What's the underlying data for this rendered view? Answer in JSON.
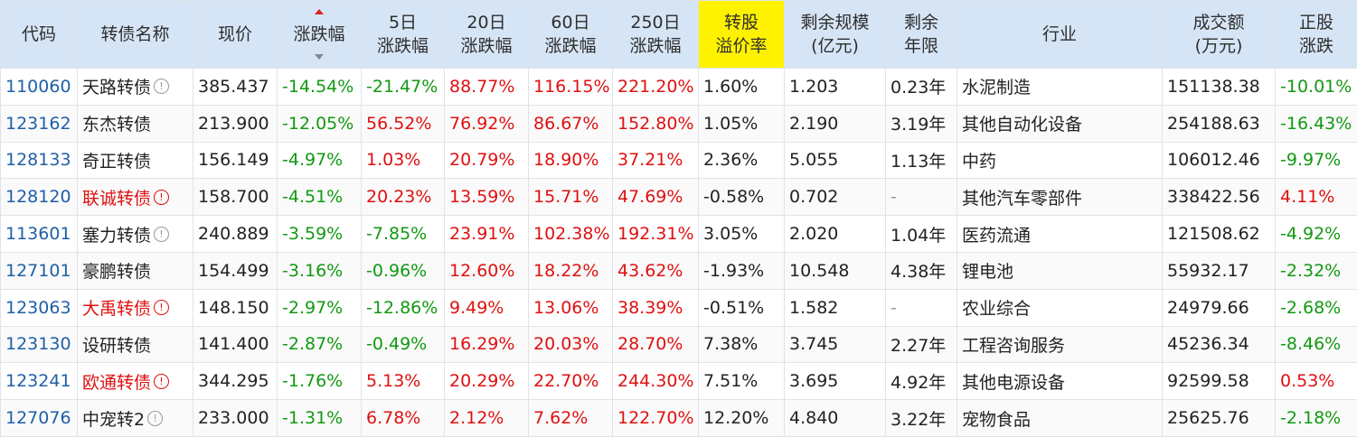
{
  "headers": [
    {
      "l1": "代码",
      "l2": ""
    },
    {
      "l1": "转债名称",
      "l2": ""
    },
    {
      "l1": "现价",
      "l2": ""
    },
    {
      "l1": "涨跌幅",
      "l2": ""
    },
    {
      "l1": "5日",
      "l2": "涨跌幅"
    },
    {
      "l1": "20日",
      "l2": "涨跌幅"
    },
    {
      "l1": "60日",
      "l2": "涨跌幅"
    },
    {
      "l1": "250日",
      "l2": "涨跌幅"
    },
    {
      "l1": "转股",
      "l2": "溢价率"
    },
    {
      "l1": "剩余规模",
      "l2": "(亿元)"
    },
    {
      "l1": "剩余",
      "l2": "年限"
    },
    {
      "l1": "行业",
      "l2": ""
    },
    {
      "l1": "成交额",
      "l2": "(万元)"
    },
    {
      "l1": "正股",
      "l2": "涨跌"
    }
  ],
  "sort": {
    "column": "涨跌幅"
  },
  "rows": [
    {
      "code": "110060",
      "name": "天路转债",
      "info": "normal",
      "price": "385.437",
      "chg": "-14.54%",
      "chg5": "-21.47%",
      "chg20": "88.77%",
      "chg60": "116.15%",
      "chg250": "221.20%",
      "premium": "1.60%",
      "scale": "1.203",
      "years": "0.23年",
      "industry": "水泥制造",
      "amount": "151138.38",
      "stock_chg": "-10.01%"
    },
    {
      "code": "123162",
      "name": "东杰转债",
      "info": "none",
      "price": "213.900",
      "chg": "-12.05%",
      "chg5": "56.52%",
      "chg20": "76.92%",
      "chg60": "86.67%",
      "chg250": "152.80%",
      "premium": "1.05%",
      "scale": "2.190",
      "years": "3.19年",
      "industry": "其他自动化设备",
      "amount": "254188.63",
      "stock_chg": "-16.43%"
    },
    {
      "code": "128133",
      "name": "奇正转债",
      "info": "none",
      "price": "156.149",
      "chg": "-4.97%",
      "chg5": "1.03%",
      "chg20": "20.79%",
      "chg60": "18.90%",
      "chg250": "37.21%",
      "premium": "2.36%",
      "scale": "5.055",
      "years": "1.13年",
      "industry": "中药",
      "amount": "106012.46",
      "stock_chg": "-9.97%"
    },
    {
      "code": "128120",
      "name": "联诚转债",
      "info": "warn",
      "price": "158.700",
      "chg": "-4.51%",
      "chg5": "20.23%",
      "chg20": "13.59%",
      "chg60": "15.71%",
      "chg250": "47.69%",
      "premium": "-0.58%",
      "scale": "0.702",
      "years": "-",
      "industry": "其他汽车零部件",
      "amount": "338422.56",
      "stock_chg": "4.11%"
    },
    {
      "code": "113601",
      "name": "塞力转债",
      "info": "normal",
      "price": "240.889",
      "chg": "-3.59%",
      "chg5": "-7.85%",
      "chg20": "23.91%",
      "chg60": "102.38%",
      "chg250": "192.31%",
      "premium": "3.05%",
      "scale": "2.020",
      "years": "1.04年",
      "industry": "医药流通",
      "amount": "121508.62",
      "stock_chg": "-4.92%"
    },
    {
      "code": "127101",
      "name": "豪鹏转债",
      "info": "none",
      "price": "154.499",
      "chg": "-3.16%",
      "chg5": "-0.96%",
      "chg20": "12.60%",
      "chg60": "18.22%",
      "chg250": "43.62%",
      "premium": "-1.93%",
      "scale": "10.548",
      "years": "4.38年",
      "industry": "锂电池",
      "amount": "55932.17",
      "stock_chg": "-2.32%"
    },
    {
      "code": "123063",
      "name": "大禹转债",
      "info": "warn",
      "price": "148.150",
      "chg": "-2.97%",
      "chg5": "-12.86%",
      "chg20": "9.49%",
      "chg60": "13.06%",
      "chg250": "38.39%",
      "premium": "-0.51%",
      "scale": "1.582",
      "years": "-",
      "industry": "农业综合",
      "amount": "24979.66",
      "stock_chg": "-2.68%"
    },
    {
      "code": "123130",
      "name": "设研转债",
      "info": "none",
      "price": "141.400",
      "chg": "-2.87%",
      "chg5": "-0.49%",
      "chg20": "16.29%",
      "chg60": "20.03%",
      "chg250": "28.70%",
      "premium": "7.38%",
      "scale": "3.745",
      "years": "2.27年",
      "industry": "工程咨询服务",
      "amount": "45236.34",
      "stock_chg": "-8.46%"
    },
    {
      "code": "123241",
      "name": "欧通转债",
      "info": "warn",
      "price": "344.295",
      "chg": "-1.76%",
      "chg5": "5.13%",
      "chg20": "20.29%",
      "chg60": "22.70%",
      "chg250": "244.30%",
      "premium": "7.51%",
      "scale": "3.695",
      "years": "4.92年",
      "industry": "其他电源设备",
      "amount": "92599.58",
      "stock_chg": "0.53%"
    },
    {
      "code": "127076",
      "name": "中宠转2",
      "info": "normal",
      "price": "233.000",
      "chg": "-1.31%",
      "chg5": "6.78%",
      "chg20": "2.12%",
      "chg60": "7.62%",
      "chg250": "122.70%",
      "premium": "12.20%",
      "scale": "4.840",
      "years": "3.22年",
      "industry": "宠物食品",
      "amount": "25625.76",
      "stock_chg": "-2.18%"
    }
  ],
  "info_glyph": "!"
}
